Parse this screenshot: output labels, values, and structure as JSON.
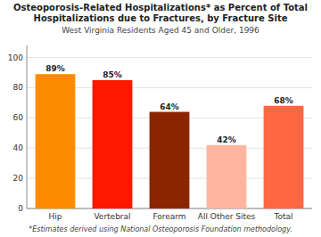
{
  "chart_data": {
    "type": "bar",
    "title": "Osteoporosis-Related Hospitalizations* as Percent of Total Hospitalizations due to Fractures, by Fracture Site",
    "subtitle": "West Virginia Residents Aged 45 and Older, 1996",
    "annotations": [
      "*Estimates derived using National Osteoporosis Foundation methodology."
    ],
    "categories": [
      "Hip",
      "Vertebral",
      "Forearm",
      "All Other Sites",
      "Total"
    ],
    "values": [
      89,
      85,
      64,
      42,
      68
    ],
    "value_labels": [
      "89%",
      "85%",
      "64%",
      "42%",
      "68%"
    ],
    "colors": [
      "#FF8C00",
      "#FF1800",
      "#8B2500",
      "#FFB6A0",
      "#FF6644"
    ],
    "ylim": [
      0,
      108
    ],
    "yticks": [
      0,
      20,
      40,
      60,
      80,
      100
    ],
    "grid": true,
    "data_labels": true
  }
}
